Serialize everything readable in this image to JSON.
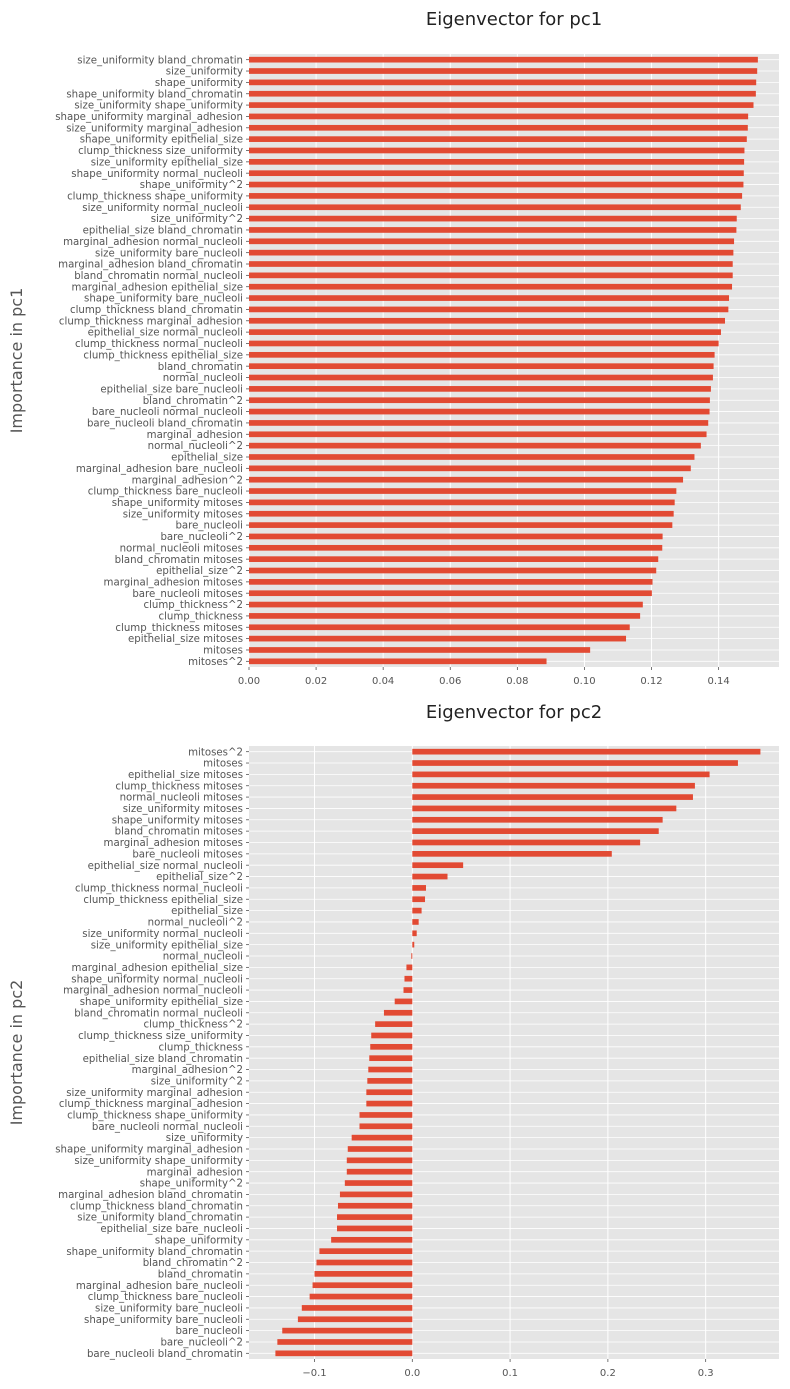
{
  "style": {
    "bar_color": "#E24A33",
    "panel_bg": "#E5E5E5",
    "grid_color": "#FFFFFF",
    "text_color": "#555555"
  },
  "chart_data": [
    {
      "type": "bar",
      "orientation": "horizontal",
      "title": "Eigenvector for pc1",
      "xlabel": "",
      "ylabel": "Importance in pc1",
      "xlim": [
        0.0,
        0.158
      ],
      "xticks": [
        0.0,
        0.02,
        0.04,
        0.06,
        0.08,
        0.1,
        0.12,
        0.14
      ],
      "xtick_labels": [
        "0.00",
        "0.02",
        "0.04",
        "0.06",
        "0.08",
        "0.10",
        "0.12",
        "0.14"
      ],
      "grid": true,
      "categories": [
        "size_uniformity bland_chromatin",
        "size_uniformity",
        "shape_uniformity",
        "shape_uniformity bland_chromatin",
        "size_uniformity shape_uniformity",
        "shape_uniformity marginal_adhesion",
        "size_uniformity marginal_adhesion",
        "shape_uniformity epithelial_size",
        "clump_thickness size_uniformity",
        "size_uniformity epithelial_size",
        "shape_uniformity normal_nucleoli",
        "shape_uniformity^2",
        "clump_thickness shape_uniformity",
        "size_uniformity normal_nucleoli",
        "size_uniformity^2",
        "epithelial_size bland_chromatin",
        "marginal_adhesion normal_nucleoli",
        "size_uniformity bare_nucleoli",
        "marginal_adhesion bland_chromatin",
        "bland_chromatin normal_nucleoli",
        "marginal_adhesion epithelial_size",
        "shape_uniformity bare_nucleoli",
        "clump_thickness bland_chromatin",
        "clump_thickness marginal_adhesion",
        "epithelial_size normal_nucleoli",
        "clump_thickness normal_nucleoli",
        "clump_thickness epithelial_size",
        "bland_chromatin",
        "normal_nucleoli",
        "epithelial_size bare_nucleoli",
        "bland_chromatin^2",
        "bare_nucleoli normal_nucleoli",
        "bare_nucleoli bland_chromatin",
        "marginal_adhesion",
        "normal_nucleoli^2",
        "epithelial_size",
        "marginal_adhesion bare_nucleoli",
        "marginal_adhesion^2",
        "clump_thickness bare_nucleoli",
        "shape_uniformity mitoses",
        "size_uniformity mitoses",
        "bare_nucleoli",
        "bare_nucleoli^2",
        "normal_nucleoli mitoses",
        "bland_chromatin mitoses",
        "epithelial_size^2",
        "marginal_adhesion mitoses",
        "bare_nucleoli mitoses",
        "clump_thickness^2",
        "clump_thickness",
        "clump_thickness mitoses",
        "epithelial_size mitoses",
        "mitoses",
        "mitoses^2"
      ],
      "values": [
        0.1517,
        0.1515,
        0.1512,
        0.1511,
        0.1504,
        0.1488,
        0.1487,
        0.1484,
        0.1477,
        0.1476,
        0.1475,
        0.1474,
        0.147,
        0.1466,
        0.1454,
        0.1453,
        0.1446,
        0.1444,
        0.1442,
        0.1442,
        0.144,
        0.1431,
        0.1429,
        0.1419,
        0.1407,
        0.14,
        0.1388,
        0.1385,
        0.1383,
        0.1377,
        0.1374,
        0.1373,
        0.1369,
        0.1364,
        0.1347,
        0.1328,
        0.1317,
        0.1294,
        0.1274,
        0.1269,
        0.1266,
        0.1262,
        0.1233,
        0.1232,
        0.122,
        0.1214,
        0.1203,
        0.1201,
        0.1174,
        0.1166,
        0.1135,
        0.1124,
        0.1017,
        0.0887
      ]
    },
    {
      "type": "bar",
      "orientation": "horizontal",
      "title": "Eigenvector for pc2",
      "xlabel": "",
      "ylabel": "Importance in pc2",
      "xlim": [
        -0.167,
        0.375
      ],
      "xticks": [
        -0.1,
        0.0,
        0.1,
        0.2,
        0.3
      ],
      "xtick_labels": [
        "−0.1",
        "0.0",
        "0.1",
        "0.2",
        "0.3"
      ],
      "grid": true,
      "categories": [
        "mitoses^2",
        "mitoses",
        "epithelial_size mitoses",
        "clump_thickness mitoses",
        "normal_nucleoli mitoses",
        "size_uniformity mitoses",
        "shape_uniformity mitoses",
        "bland_chromatin mitoses",
        "marginal_adhesion mitoses",
        "bare_nucleoli mitoses",
        "epithelial_size normal_nucleoli",
        "epithelial_size^2",
        "clump_thickness normal_nucleoli",
        "clump_thickness epithelial_size",
        "epithelial_size",
        "normal_nucleoli^2",
        "size_uniformity normal_nucleoli",
        "size_uniformity epithelial_size",
        "normal_nucleoli",
        "marginal_adhesion epithelial_size",
        "shape_uniformity normal_nucleoli",
        "marginal_adhesion normal_nucleoli",
        "shape_uniformity epithelial_size",
        "bland_chromatin normal_nucleoli",
        "clump_thickness^2",
        "clump_thickness size_uniformity",
        "clump_thickness",
        "epithelial_size bland_chromatin",
        "marginal_adhesion^2",
        "size_uniformity^2",
        "size_uniformity marginal_adhesion",
        "clump_thickness marginal_adhesion",
        "clump_thickness shape_uniformity",
        "bare_nucleoli normal_nucleoli",
        "size_uniformity",
        "shape_uniformity marginal_adhesion",
        "size_uniformity shape_uniformity",
        "marginal_adhesion",
        "shape_uniformity^2",
        "marginal_adhesion bland_chromatin",
        "clump_thickness bland_chromatin",
        "size_uniformity bland_chromatin",
        "epithelial_size bare_nucleoli",
        "shape_uniformity",
        "shape_uniformity bland_chromatin",
        "bland_chromatin^2",
        "bland_chromatin",
        "marginal_adhesion bare_nucleoli",
        "clump_thickness bare_nucleoli",
        "size_uniformity bare_nucleoli",
        "shape_uniformity bare_nucleoli",
        "bare_nucleoli",
        "bare_nucleoli^2",
        "bare_nucleoli bland_chromatin"
      ],
      "values": [
        0.356,
        0.333,
        0.304,
        0.289,
        0.287,
        0.27,
        0.256,
        0.252,
        0.233,
        0.204,
        0.052,
        0.036,
        0.014,
        0.013,
        0.0095,
        0.0065,
        0.0045,
        0.002,
        -0.001,
        -0.006,
        -0.008,
        -0.009,
        -0.018,
        -0.029,
        -0.038,
        -0.042,
        -0.043,
        -0.044,
        -0.045,
        -0.046,
        -0.047,
        -0.047,
        -0.054,
        -0.054,
        -0.062,
        -0.066,
        -0.067,
        -0.067,
        -0.069,
        -0.074,
        -0.076,
        -0.077,
        -0.077,
        -0.083,
        -0.095,
        -0.098,
        -0.1,
        -0.102,
        -0.105,
        -0.113,
        -0.117,
        -0.133,
        -0.138,
        -0.14
      ]
    }
  ]
}
